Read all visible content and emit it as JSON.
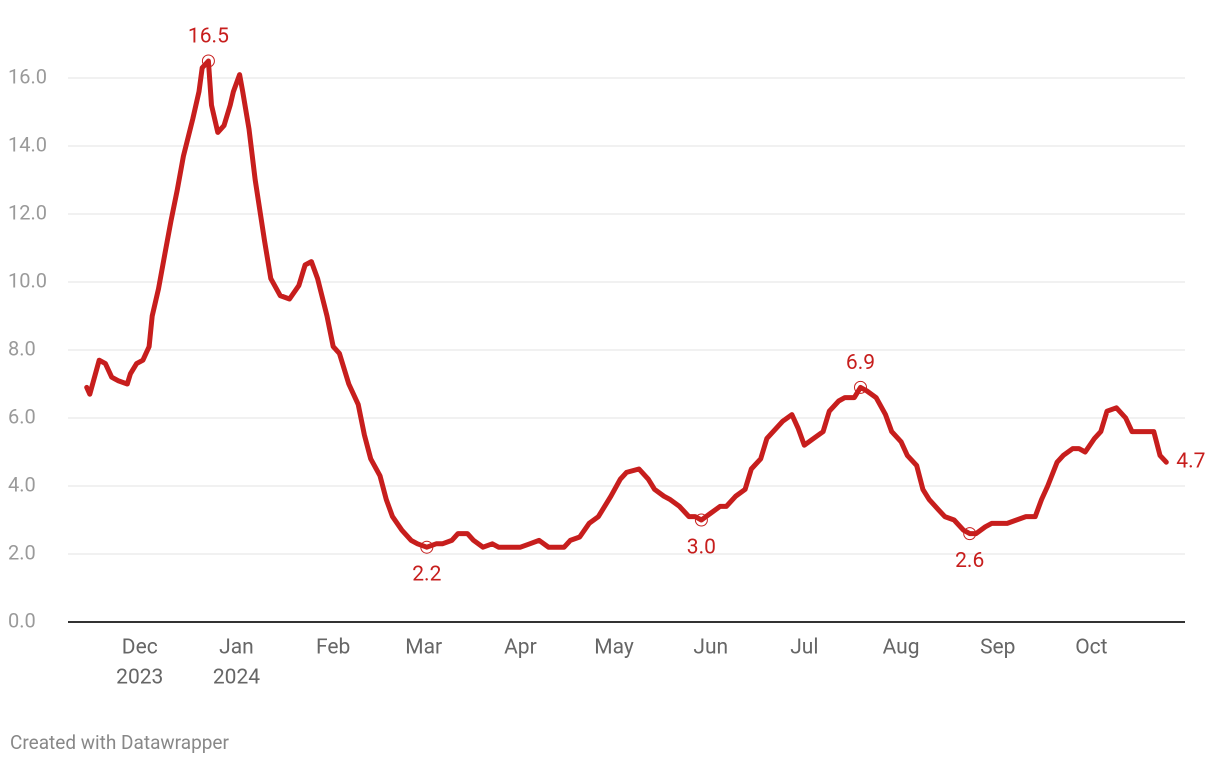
{
  "chart_data": {
    "type": "line",
    "x": [
      "2023-11-14",
      "2023-11-15",
      "2023-11-18",
      "2023-11-20",
      "2023-11-22",
      "2023-11-24",
      "2023-11-27",
      "2023-11-28",
      "2023-11-30",
      "2023-12-02",
      "2023-12-04",
      "2023-12-05",
      "2023-12-07",
      "2023-12-09",
      "2023-12-11",
      "2023-12-13",
      "2023-12-15",
      "2023-12-18",
      "2023-12-20",
      "2023-12-21",
      "2023-12-23",
      "2023-12-24",
      "2023-12-26",
      "2023-12-28",
      "2023-12-30",
      "2023-12-31",
      "2024-01-02",
      "2024-01-03",
      "2024-01-05",
      "2024-01-07",
      "2024-01-10",
      "2024-01-12",
      "2024-01-15",
      "2024-01-18",
      "2024-01-21",
      "2024-01-23",
      "2024-01-25",
      "2024-01-27",
      "2024-01-30",
      "2024-02-01",
      "2024-02-03",
      "2024-02-06",
      "2024-02-09",
      "2024-02-11",
      "2024-02-13",
      "2024-02-16",
      "2024-02-18",
      "2024-02-20",
      "2024-02-23",
      "2024-02-26",
      "2024-02-28",
      "2024-03-02",
      "2024-03-05",
      "2024-03-07",
      "2024-03-10",
      "2024-03-12",
      "2024-03-15",
      "2024-03-17",
      "2024-03-20",
      "2024-03-23",
      "2024-03-25",
      "2024-03-28",
      "2024-04-01",
      "2024-04-04",
      "2024-04-07",
      "2024-04-10",
      "2024-04-12",
      "2024-04-15",
      "2024-04-17",
      "2024-04-20",
      "2024-04-23",
      "2024-04-26",
      "2024-04-30",
      "2024-05-03",
      "2024-05-05",
      "2024-05-09",
      "2024-05-12",
      "2024-05-14",
      "2024-05-17",
      "2024-05-19",
      "2024-05-22",
      "2024-05-25",
      "2024-05-27",
      "2024-05-29",
      "2024-06-01",
      "2024-06-04",
      "2024-06-06",
      "2024-06-09",
      "2024-06-12",
      "2024-06-14",
      "2024-06-17",
      "2024-06-19",
      "2024-06-22",
      "2024-06-24",
      "2024-06-27",
      "2024-06-29",
      "2024-07-01",
      "2024-07-04",
      "2024-07-07",
      "2024-07-09",
      "2024-07-12",
      "2024-07-14",
      "2024-07-17",
      "2024-07-19",
      "2024-07-21",
      "2024-07-24",
      "2024-07-27",
      "2024-07-29",
      "2024-08-01",
      "2024-08-03",
      "2024-08-06",
      "2024-08-08",
      "2024-08-10",
      "2024-08-13",
      "2024-08-15",
      "2024-08-18",
      "2024-08-21",
      "2024-08-23",
      "2024-08-25",
      "2024-08-28",
      "2024-08-30",
      "2024-09-02",
      "2024-09-04",
      "2024-09-07",
      "2024-09-10",
      "2024-09-13",
      "2024-09-15",
      "2024-09-17",
      "2024-09-20",
      "2024-09-22",
      "2024-09-25",
      "2024-09-27",
      "2024-09-29",
      "2024-10-02",
      "2024-10-04",
      "2024-10-06",
      "2024-10-09",
      "2024-10-12",
      "2024-10-14",
      "2024-10-17",
      "2024-10-19",
      "2024-10-21",
      "2024-10-23",
      "2024-10-25"
    ],
    "values": [
      6.9,
      6.7,
      7.7,
      7.6,
      7.2,
      7.1,
      7.0,
      7.3,
      7.6,
      7.7,
      8.1,
      9.0,
      9.8,
      10.8,
      11.8,
      12.7,
      13.7,
      14.8,
      15.6,
      16.3,
      16.5,
      15.2,
      14.4,
      14.6,
      15.2,
      15.6,
      16.1,
      15.6,
      14.5,
      13.0,
      11.2,
      10.1,
      9.6,
      9.5,
      9.9,
      10.5,
      10.6,
      10.1,
      9.0,
      8.1,
      7.9,
      7.0,
      6.4,
      5.5,
      4.8,
      4.3,
      3.6,
      3.1,
      2.7,
      2.4,
      2.3,
      2.2,
      2.3,
      2.3,
      2.4,
      2.6,
      2.6,
      2.4,
      2.2,
      2.3,
      2.2,
      2.2,
      2.2,
      2.3,
      2.4,
      2.2,
      2.2,
      2.2,
      2.4,
      2.5,
      2.9,
      3.1,
      3.7,
      4.2,
      4.4,
      4.5,
      4.2,
      3.9,
      3.7,
      3.6,
      3.4,
      3.1,
      3.1,
      3.0,
      3.2,
      3.4,
      3.4,
      3.7,
      3.9,
      4.5,
      4.8,
      5.4,
      5.7,
      5.9,
      6.1,
      5.7,
      5.2,
      5.4,
      5.6,
      6.2,
      6.5,
      6.6,
      6.6,
      6.9,
      6.8,
      6.6,
      6.1,
      5.6,
      5.3,
      4.9,
      4.6,
      3.9,
      3.6,
      3.3,
      3.1,
      3.0,
      2.7,
      2.6,
      2.6,
      2.8,
      2.9,
      2.9,
      2.9,
      3.0,
      3.1,
      3.1,
      3.6,
      4.0,
      4.7,
      4.9,
      5.1,
      5.1,
      5.0,
      5.4,
      5.6,
      6.2,
      6.3,
      6.0,
      5.6,
      5.6,
      5.6,
      5.6,
      4.9,
      4.7
    ],
    "value_labels": [
      null,
      null,
      null,
      null,
      null,
      null,
      null,
      null,
      null,
      null,
      null,
      null,
      null,
      null,
      null,
      null,
      null,
      null,
      null,
      null,
      "16.5",
      null,
      null,
      null,
      null,
      null,
      null,
      null,
      null,
      null,
      null,
      null,
      null,
      null,
      null,
      null,
      null,
      null,
      null,
      null,
      null,
      null,
      null,
      null,
      null,
      null,
      null,
      null,
      null,
      null,
      null,
      "2.2",
      null,
      null,
      null,
      null,
      null,
      null,
      null,
      null,
      null,
      null,
      null,
      null,
      null,
      null,
      null,
      null,
      null,
      null,
      null,
      null,
      null,
      null,
      null,
      null,
      null,
      null,
      null,
      null,
      null,
      null,
      null,
      "3.0",
      null,
      null,
      null,
      null,
      null,
      null,
      null,
      null,
      null,
      null,
      null,
      null,
      null,
      null,
      null,
      null,
      null,
      null,
      null,
      "6.9",
      null,
      null,
      null,
      null,
      null,
      null,
      null,
      null,
      null,
      null,
      null,
      null,
      null,
      "2.6",
      null,
      null,
      null,
      null,
      null,
      null,
      null,
      null,
      null,
      null,
      null,
      null,
      null,
      null,
      null,
      null,
      null,
      null,
      null,
      null,
      null,
      null,
      null,
      null,
      null,
      "4.7"
    ],
    "color": "#c71e1d",
    "xlim": [
      "2023-11-08",
      "2024-10-31"
    ],
    "xticks": [
      {
        "value": "2023-12-01",
        "label": "Dec",
        "sublabel": "2023"
      },
      {
        "value": "2024-01-01",
        "label": "Jan",
        "sublabel": "2024"
      },
      {
        "value": "2024-02-01",
        "label": "Feb"
      },
      {
        "value": "2024-03-01",
        "label": "Mar"
      },
      {
        "value": "2024-04-01",
        "label": "Apr"
      },
      {
        "value": "2024-05-01",
        "label": "May"
      },
      {
        "value": "2024-06-01",
        "label": "Jun"
      },
      {
        "value": "2024-07-01",
        "label": "Jul"
      },
      {
        "value": "2024-08-01",
        "label": "Aug"
      },
      {
        "value": "2024-09-01",
        "label": "Sep"
      },
      {
        "value": "2024-10-01",
        "label": "Oct"
      }
    ],
    "ylim": [
      0,
      17
    ],
    "yticks": [
      {
        "value": 0,
        "label": "0.0"
      },
      {
        "value": 2,
        "label": "2.0"
      },
      {
        "value": 4,
        "label": "4.0"
      },
      {
        "value": 6,
        "label": "6.0"
      },
      {
        "value": 8,
        "label": "8.0"
      },
      {
        "value": 10,
        "label": "10.0"
      },
      {
        "value": 12,
        "label": "12.0"
      },
      {
        "value": 14,
        "label": "14.0"
      },
      {
        "value": 16,
        "label": "16.0"
      }
    ],
    "grid": true,
    "credit": "Created with Datawrapper"
  }
}
